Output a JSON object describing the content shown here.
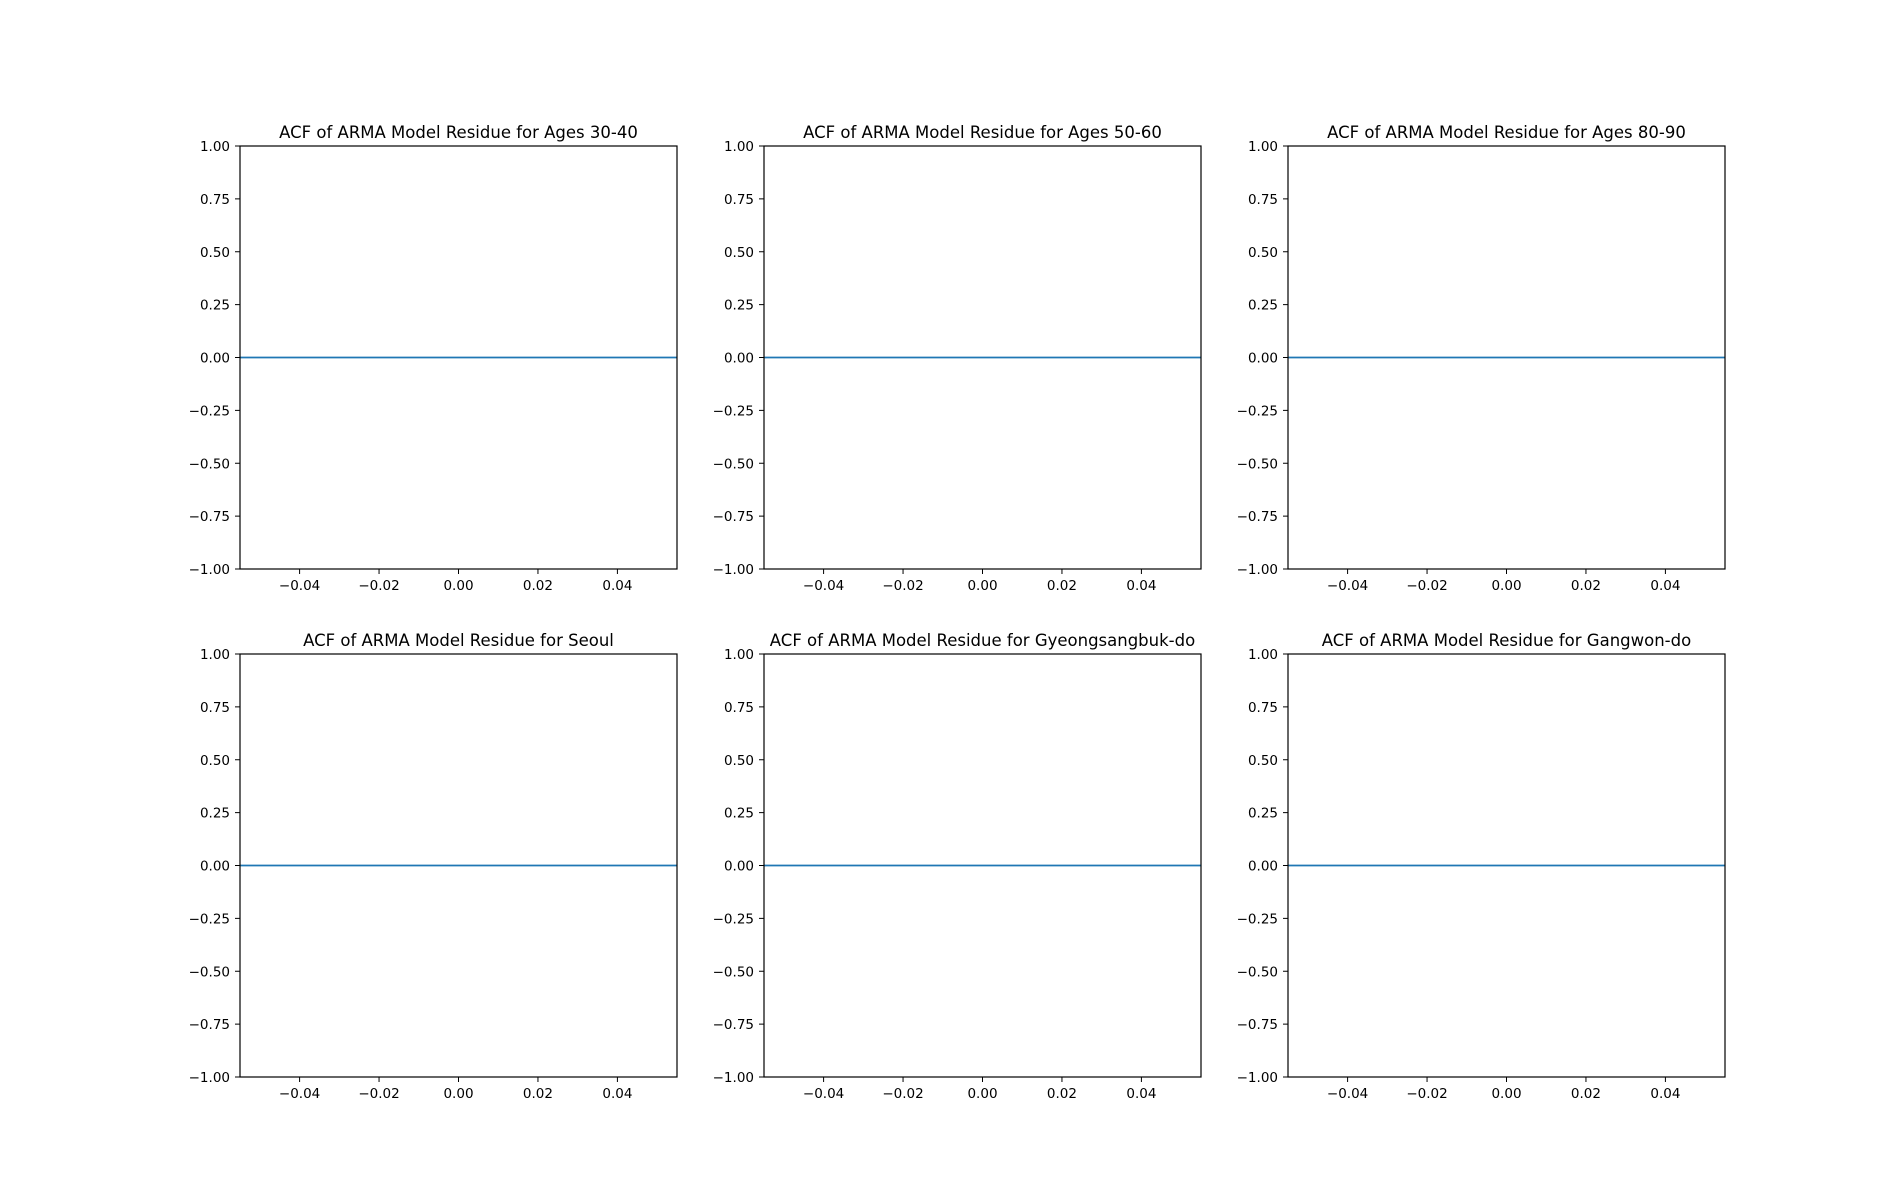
{
  "chart_data": [
    {
      "type": "line",
      "title": "ACF of ARMA Model Residue for Ages 30-40",
      "xlabel": "",
      "ylabel": "",
      "xlim": [
        -0.055,
        0.055
      ],
      "ylim": [
        -1.0,
        1.0
      ],
      "xticks": [
        -0.04,
        -0.02,
        0.0,
        0.02,
        0.04
      ],
      "xtick_labels": [
        "−0.04",
        "−0.02",
        "0.00",
        "0.02",
        "0.04"
      ],
      "yticks": [
        -1.0,
        -0.75,
        -0.5,
        -0.25,
        0.0,
        0.25,
        0.5,
        0.75,
        1.0
      ],
      "ytick_labels": [
        "−1.00",
        "−0.75",
        "−0.50",
        "−0.25",
        "0.00",
        "0.25",
        "0.50",
        "0.75",
        "1.00"
      ],
      "grid": false,
      "series": [
        {
          "color": "#1f77b4",
          "hline_y": 0.0
        }
      ]
    },
    {
      "type": "line",
      "title": "ACF of ARMA Model Residue for Ages 50-60",
      "xlabel": "",
      "ylabel": "",
      "xlim": [
        -0.055,
        0.055
      ],
      "ylim": [
        -1.0,
        1.0
      ],
      "xticks": [
        -0.04,
        -0.02,
        0.0,
        0.02,
        0.04
      ],
      "xtick_labels": [
        "−0.04",
        "−0.02",
        "0.00",
        "0.02",
        "0.04"
      ],
      "yticks": [
        -1.0,
        -0.75,
        -0.5,
        -0.25,
        0.0,
        0.25,
        0.5,
        0.75,
        1.0
      ],
      "ytick_labels": [
        "−1.00",
        "−0.75",
        "−0.50",
        "−0.25",
        "0.00",
        "0.25",
        "0.50",
        "0.75",
        "1.00"
      ],
      "grid": false,
      "series": [
        {
          "color": "#1f77b4",
          "hline_y": 0.0
        }
      ]
    },
    {
      "type": "line",
      "title": "ACF of ARMA Model Residue for Ages 80-90",
      "xlabel": "",
      "ylabel": "",
      "xlim": [
        -0.055,
        0.055
      ],
      "ylim": [
        -1.0,
        1.0
      ],
      "xticks": [
        -0.04,
        -0.02,
        0.0,
        0.02,
        0.04
      ],
      "xtick_labels": [
        "−0.04",
        "−0.02",
        "0.00",
        "0.02",
        "0.04"
      ],
      "yticks": [
        -1.0,
        -0.75,
        -0.5,
        -0.25,
        0.0,
        0.25,
        0.5,
        0.75,
        1.0
      ],
      "ytick_labels": [
        "−1.00",
        "−0.75",
        "−0.50",
        "−0.25",
        "0.00",
        "0.25",
        "0.50",
        "0.75",
        "1.00"
      ],
      "grid": false,
      "series": [
        {
          "color": "#1f77b4",
          "hline_y": 0.0
        }
      ]
    },
    {
      "type": "line",
      "title": "ACF of ARMA Model Residue for Seoul",
      "xlabel": "",
      "ylabel": "",
      "xlim": [
        -0.055,
        0.055
      ],
      "ylim": [
        -1.0,
        1.0
      ],
      "xticks": [
        -0.04,
        -0.02,
        0.0,
        0.02,
        0.04
      ],
      "xtick_labels": [
        "−0.04",
        "−0.02",
        "0.00",
        "0.02",
        "0.04"
      ],
      "yticks": [
        -1.0,
        -0.75,
        -0.5,
        -0.25,
        0.0,
        0.25,
        0.5,
        0.75,
        1.0
      ],
      "ytick_labels": [
        "−1.00",
        "−0.75",
        "−0.50",
        "−0.25",
        "0.00",
        "0.25",
        "0.50",
        "0.75",
        "1.00"
      ],
      "grid": false,
      "series": [
        {
          "color": "#1f77b4",
          "hline_y": 0.0
        }
      ]
    },
    {
      "type": "line",
      "title": "ACF of ARMA Model Residue for Gyeongsangbuk-do",
      "xlabel": "",
      "ylabel": "",
      "xlim": [
        -0.055,
        0.055
      ],
      "ylim": [
        -1.0,
        1.0
      ],
      "xticks": [
        -0.04,
        -0.02,
        0.0,
        0.02,
        0.04
      ],
      "xtick_labels": [
        "−0.04",
        "−0.02",
        "0.00",
        "0.02",
        "0.04"
      ],
      "yticks": [
        -1.0,
        -0.75,
        -0.5,
        -0.25,
        0.0,
        0.25,
        0.5,
        0.75,
        1.0
      ],
      "ytick_labels": [
        "−1.00",
        "−0.75",
        "−0.50",
        "−0.25",
        "0.00",
        "0.25",
        "0.50",
        "0.75",
        "1.00"
      ],
      "grid": false,
      "series": [
        {
          "color": "#1f77b4",
          "hline_y": 0.0
        }
      ]
    },
    {
      "type": "line",
      "title": "ACF of ARMA Model Residue for Gangwon-do",
      "xlabel": "",
      "ylabel": "",
      "xlim": [
        -0.055,
        0.055
      ],
      "ylim": [
        -1.0,
        1.0
      ],
      "xticks": [
        -0.04,
        -0.02,
        0.0,
        0.02,
        0.04
      ],
      "xtick_labels": [
        "−0.04",
        "−0.02",
        "0.00",
        "0.02",
        "0.04"
      ],
      "yticks": [
        -1.0,
        -0.75,
        -0.5,
        -0.25,
        0.0,
        0.25,
        0.5,
        0.75,
        1.0
      ],
      "ytick_labels": [
        "−1.00",
        "−0.75",
        "−0.50",
        "−0.25",
        "0.00",
        "0.25",
        "0.50",
        "0.75",
        "1.00"
      ],
      "grid": false,
      "series": [
        {
          "color": "#1f77b4",
          "hline_y": 0.0
        }
      ]
    }
  ]
}
